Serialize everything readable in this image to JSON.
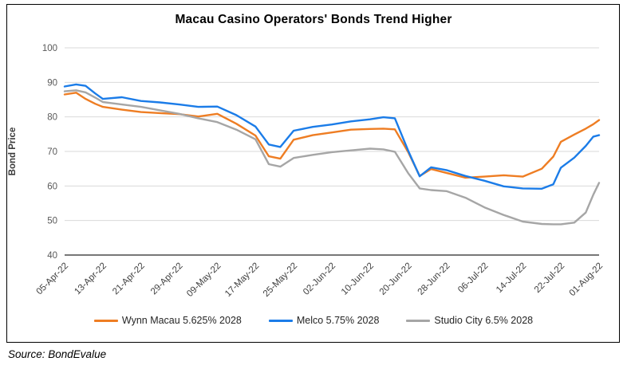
{
  "chart": {
    "title": "Macau Casino Operators' Bonds Trend Higher",
    "source": "Source: BondEvalue"
  },
  "chart_data": {
    "type": "line",
    "title": "Macau Casino Operators' Bonds Trend Higher",
    "xlabel": "",
    "ylabel": "Bond Price",
    "ylim": [
      40,
      100
    ],
    "yticks": [
      40,
      50,
      60,
      70,
      80,
      90,
      100
    ],
    "grid": true,
    "legend_position": "bottom",
    "x_unit": "tick index: 0 = 05-Apr-22, 14 = 01-Aug-22 (daily prices between ticks)",
    "x_tick_labels": [
      "05-Apr-22",
      "13-Apr-22",
      "21-Apr-22",
      "29-Apr-22",
      "09-May-22",
      "17-May-22",
      "25-May-22",
      "02-Jun-22",
      "10-Jun-22",
      "20-Jun-22",
      "28-Jun-22",
      "06-Jul-22",
      "14-Jul-22",
      "22-Jul-22",
      "01-Aug-22"
    ],
    "x": [
      0,
      0.3,
      0.55,
      0.8,
      1,
      1.5,
      2,
      2.5,
      3,
      3.5,
      4,
      4.5,
      5,
      5.35,
      5.65,
      6,
      6.5,
      7,
      7.5,
      8,
      8.35,
      8.65,
      9,
      9.3,
      9.6,
      10,
      10.5,
      11,
      11.5,
      12,
      12.5,
      12.8,
      13,
      13.35,
      13.65,
      13.85,
      14
    ],
    "series": [
      {
        "name": "Wynn Macau 5.625% 2028",
        "color": "#EE7D23",
        "values": [
          86.5,
          87.0,
          85.2,
          83.8,
          82.9,
          82.1,
          81.4,
          81.1,
          80.8,
          80.1,
          80.9,
          78.0,
          74.6,
          68.6,
          67.9,
          73.4,
          74.7,
          75.5,
          76.3,
          76.5,
          76.6,
          76.4,
          69.8,
          62.9,
          64.9,
          63.8,
          62.4,
          62.7,
          63.1,
          62.7,
          65.0,
          68.5,
          72.8,
          74.9,
          76.6,
          77.9,
          79.1
        ]
      },
      {
        "name": "Melco 5.75% 2028",
        "color": "#1B7CE8",
        "values": [
          88.8,
          89.4,
          89.0,
          86.8,
          85.2,
          85.7,
          84.6,
          84.2,
          83.6,
          82.9,
          83.0,
          80.5,
          77.2,
          72.0,
          71.3,
          76.0,
          77.1,
          77.8,
          78.7,
          79.3,
          79.9,
          79.6,
          70.2,
          62.8,
          65.4,
          64.6,
          62.9,
          61.5,
          59.9,
          59.3,
          59.2,
          60.5,
          65.3,
          68.2,
          71.6,
          74.3,
          74.7
        ]
      },
      {
        "name": "Studio City 6.5% 2028",
        "color": "#A6A6A6",
        "values": [
          87.4,
          87.7,
          87.1,
          85.6,
          84.3,
          83.6,
          82.9,
          81.9,
          80.9,
          79.6,
          78.5,
          76.3,
          73.5,
          66.3,
          65.6,
          68.1,
          69.0,
          69.8,
          70.3,
          70.8,
          70.6,
          69.9,
          63.7,
          59.3,
          58.8,
          58.5,
          56.6,
          53.8,
          51.6,
          49.7,
          49.0,
          48.9,
          48.9,
          49.4,
          52.3,
          57.5,
          60.9
        ]
      }
    ]
  }
}
